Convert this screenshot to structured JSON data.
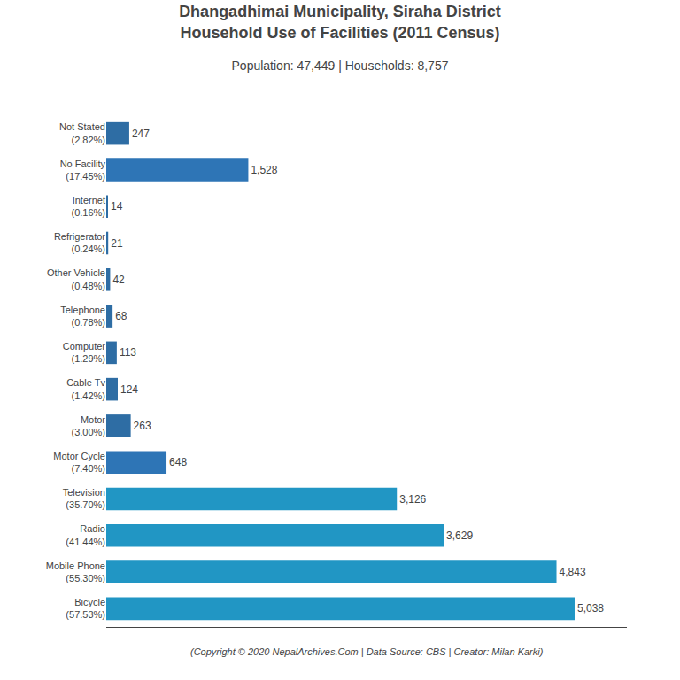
{
  "chart_data": {
    "type": "bar",
    "orientation": "horizontal",
    "title": "Dhangadhimai Municipality, Siraha District\nHousehold Use of Facilities (2011 Census)",
    "subtitle": "Population: 47,449 | Households: 8,757",
    "annotations": [
      "(Copyright © 2020 NepalArchives.Com | Data Source: CBS | Creator: Milan Karki)"
    ],
    "categories": [
      "Not Stated\n(2.82%)",
      "No Facility\n(17.45%)",
      "Internet\n(0.16%)",
      "Refrigerator\n(0.24%)",
      "Other Vehicle\n(0.48%)",
      "Telephone\n(0.78%)",
      "Computer\n(1.29%)",
      "Cable Tv\n(1.42%)",
      "Motor\n(3.00%)",
      "Motor Cycle\n(7.40%)",
      "Television\n(35.70%)",
      "Radio\n(41.44%)",
      "Mobile Phone\n(55.30%)",
      "Bicycle\n(57.53%)"
    ],
    "values": [
      247,
      1528,
      14,
      21,
      42,
      68,
      113,
      124,
      263,
      648,
      3126,
      3629,
      4843,
      5038
    ],
    "value_labels": [
      "247",
      "1,528",
      "14",
      "21",
      "42",
      "68",
      "113",
      "124",
      "263",
      "648",
      "3,126",
      "3,629",
      "4,843",
      "5,038"
    ],
    "colors": [
      "#2e6da4",
      "#2e75b6",
      "#2e6da4",
      "#2e6da4",
      "#2e6da4",
      "#2e6da4",
      "#2e6da4",
      "#2e6da4",
      "#2e6da4",
      "#2e75b6",
      "#2196c4",
      "#2196c4",
      "#2196c4",
      "#2196c4"
    ],
    "xlim": [
      0,
      5600
    ],
    "data_labels": true,
    "tick_labels": "y",
    "grid": false
  }
}
